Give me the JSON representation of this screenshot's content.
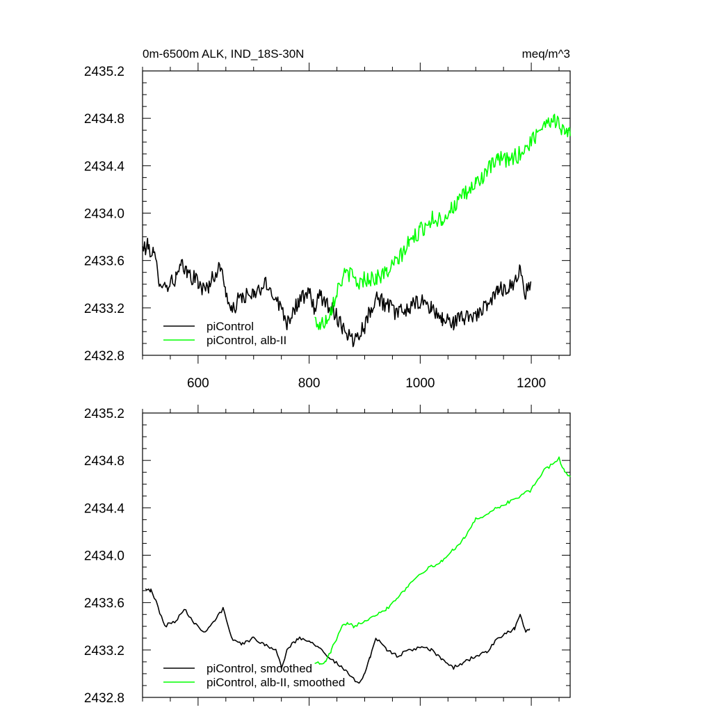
{
  "figure": {
    "title_left": "0m-6500m ALK, IND_18S-30N",
    "title_right": "meq/m^3"
  },
  "colors": {
    "picontrol": "#000000",
    "alb_ii": "#00ff00",
    "axes": "#000000",
    "background": "#ffffff"
  },
  "chart_data": [
    {
      "type": "line",
      "panel": "top",
      "title": "0m-6500m ALK, IND_18S-30N",
      "units_label": "meq/m^3",
      "xlabel": "",
      "ylabel": "",
      "xlim": [
        500,
        1270
      ],
      "ylim": [
        2432.8,
        2435.2
      ],
      "x_ticks": [
        600,
        800,
        1000,
        1200
      ],
      "x_tick_labels": [
        "600",
        "800",
        "1000",
        "1200"
      ],
      "y_ticks": [
        2432.8,
        2433.2,
        2433.6,
        2434.0,
        2434.4,
        2434.8,
        2435.2
      ],
      "y_tick_labels": [
        "2432.8",
        "2433.2",
        "2433.6",
        "2434.0",
        "2434.4",
        "2434.8",
        "2435.2"
      ],
      "grid": false,
      "legend_position": "bottom-left",
      "series": [
        {
          "name": "piControl",
          "color": "#000000",
          "x": [
            500,
            510,
            520,
            530,
            540,
            560,
            570,
            580,
            600,
            610,
            620,
            630,
            640,
            650,
            660,
            670,
            680,
            700,
            720,
            740,
            760,
            780,
            800,
            810,
            820,
            840,
            860,
            870,
            880,
            890,
            900,
            910,
            920,
            940,
            960,
            980,
            1000,
            1020,
            1040,
            1060,
            1080,
            1100,
            1120,
            1140,
            1160,
            1170,
            1180,
            1190,
            1200
          ],
          "y": [
            2433.7,
            2433.72,
            2433.65,
            2433.45,
            2433.38,
            2433.45,
            2433.55,
            2433.5,
            2433.42,
            2433.35,
            2433.4,
            2433.48,
            2433.55,
            2433.35,
            2433.15,
            2433.25,
            2433.3,
            2433.3,
            2433.4,
            2433.3,
            2433.08,
            2433.25,
            2433.32,
            2433.2,
            2433.3,
            2433.2,
            2433.05,
            2432.98,
            2432.92,
            2433.0,
            2433.05,
            2433.18,
            2433.3,
            2433.22,
            2433.15,
            2433.2,
            2433.25,
            2433.2,
            2433.1,
            2433.08,
            2433.12,
            2433.15,
            2433.2,
            2433.35,
            2433.38,
            2433.42,
            2433.52,
            2433.32,
            2433.42
          ]
        },
        {
          "name": "piControl, alb-II",
          "color": "#00ff00",
          "x": [
            810,
            820,
            830,
            840,
            850,
            860,
            870,
            880,
            890,
            900,
            920,
            940,
            960,
            980,
            1000,
            1020,
            1040,
            1060,
            1080,
            1100,
            1120,
            1140,
            1160,
            1180,
            1200,
            1220,
            1240,
            1260,
            1270
          ],
          "y": [
            2433.1,
            2433.05,
            2433.1,
            2433.2,
            2433.35,
            2433.45,
            2433.5,
            2433.45,
            2433.4,
            2433.45,
            2433.45,
            2433.5,
            2433.6,
            2433.75,
            2433.85,
            2433.95,
            2433.95,
            2434.05,
            2434.15,
            2434.25,
            2434.35,
            2434.45,
            2434.45,
            2434.5,
            2434.6,
            2434.75,
            2434.8,
            2434.7,
            2434.65
          ]
        }
      ]
    },
    {
      "type": "line",
      "panel": "bottom",
      "title": "",
      "xlabel": "",
      "ylabel": "",
      "xlim": [
        500,
        1270
      ],
      "ylim": [
        2432.8,
        2435.2
      ],
      "x_ticks": [
        600,
        800,
        1000,
        1200
      ],
      "y_ticks": [
        2432.8,
        2433.2,
        2433.6,
        2434.0,
        2434.4,
        2434.8,
        2435.2
      ],
      "y_tick_labels": [
        "2432.8",
        "2433.2",
        "2433.6",
        "2434.0",
        "2434.4",
        "2434.8",
        "2435.2"
      ],
      "grid": false,
      "legend_position": "bottom-left",
      "series": [
        {
          "name": "piControl, smoothed",
          "color": "#000000",
          "x": [
            505,
            515,
            525,
            540,
            560,
            575,
            590,
            610,
            630,
            645,
            660,
            680,
            700,
            720,
            740,
            750,
            760,
            780,
            800,
            820,
            840,
            860,
            870,
            880,
            890,
            900,
            910,
            920,
            940,
            960,
            980,
            1000,
            1020,
            1040,
            1060,
            1080,
            1100,
            1120,
            1140,
            1160,
            1170,
            1180,
            1190,
            1197
          ],
          "y": [
            2433.73,
            2433.7,
            2433.6,
            2433.4,
            2433.45,
            2433.55,
            2433.45,
            2433.35,
            2433.45,
            2433.55,
            2433.3,
            2433.25,
            2433.3,
            2433.25,
            2433.2,
            2433.05,
            2433.2,
            2433.3,
            2433.28,
            2433.22,
            2433.12,
            2433.05,
            2433.0,
            2432.95,
            2432.93,
            2433.0,
            2433.15,
            2433.3,
            2433.2,
            2433.15,
            2433.2,
            2433.22,
            2433.2,
            2433.12,
            2433.05,
            2433.1,
            2433.15,
            2433.18,
            2433.3,
            2433.35,
            2433.38,
            2433.5,
            2433.35,
            2433.38
          ]
        },
        {
          "name": "piControl, alb-II, smoothed",
          "color": "#00ff00",
          "x": [
            810,
            820,
            830,
            840,
            850,
            860,
            870,
            880,
            900,
            920,
            940,
            960,
            980,
            1000,
            1020,
            1040,
            1060,
            1080,
            1100,
            1120,
            1140,
            1160,
            1180,
            1200,
            1220,
            1240,
            1250,
            1260,
            1270
          ],
          "y": [
            2433.1,
            2433.08,
            2433.1,
            2433.2,
            2433.3,
            2433.4,
            2433.42,
            2433.4,
            2433.45,
            2433.5,
            2433.55,
            2433.65,
            2433.75,
            2433.85,
            2433.9,
            2433.95,
            2434.05,
            2434.15,
            2434.3,
            2434.35,
            2434.4,
            2434.45,
            2434.5,
            2434.55,
            2434.7,
            2434.78,
            2434.82,
            2434.7,
            2434.66
          ]
        }
      ]
    }
  ]
}
